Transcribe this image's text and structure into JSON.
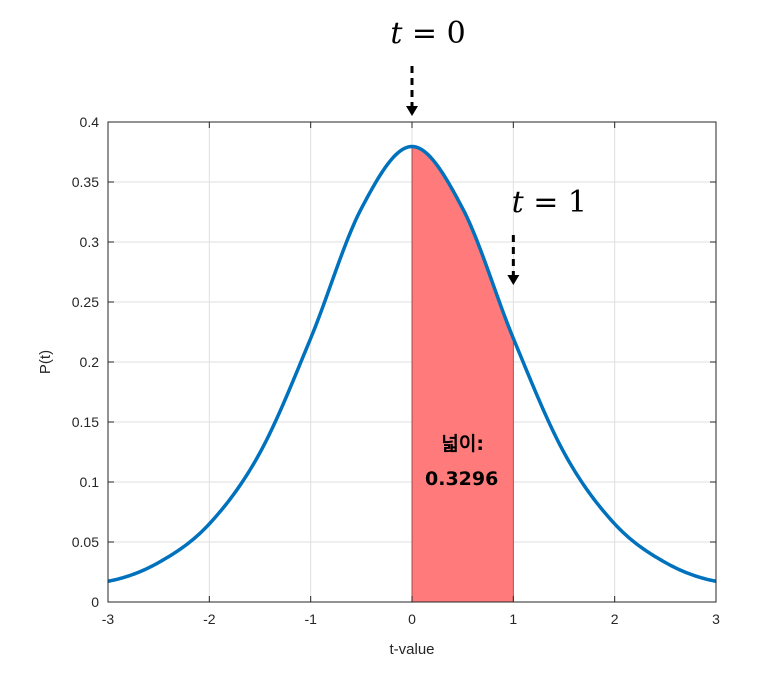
{
  "chart_data": {
    "type": "line",
    "title": "",
    "xlabel": "t-value",
    "ylabel": "P(t)",
    "xlim": [
      -3,
      3
    ],
    "ylim": [
      0,
      0.4
    ],
    "xticks": [
      -3,
      -2,
      -1,
      0,
      1,
      2,
      3
    ],
    "xtick_labels": [
      "-3",
      "-2",
      "-1",
      "0",
      "1",
      "2",
      "3"
    ],
    "yticks": [
      0,
      0.05,
      0.1,
      0.15,
      0.2,
      0.25,
      0.3,
      0.35,
      0.4
    ],
    "ytick_labels": [
      "0",
      "0.05",
      "0.1",
      "0.15",
      "0.2",
      "0.25",
      "0.3",
      "0.35",
      "0.4"
    ],
    "grid": true,
    "degrees_of_freedom_hint": 5,
    "series": [
      {
        "color": "#0072bd",
        "x": [
          -3,
          -2.5,
          -2,
          -1.5,
          -1,
          -0.5,
          0,
          0.5,
          1,
          1.5,
          2,
          2.5,
          3
        ],
        "y": [
          0.0173,
          0.0329,
          0.0651,
          0.1245,
          0.2197,
          0.3279,
          0.3796,
          0.3279,
          0.2197,
          0.1245,
          0.0651,
          0.0329,
          0.0173
        ]
      }
    ],
    "shaded_region": {
      "x_from": 0,
      "x_to": 1,
      "color": "#ff7a7a"
    },
    "annotations": [
      {
        "id": "t0",
        "math_var": "t",
        "math_rest": " = 0",
        "points_to_x": 0
      },
      {
        "id": "t1",
        "math_var": "t",
        "math_rest": " = 1",
        "points_to_x": 1
      }
    ],
    "area_label_line1": "넓이:",
    "area_label_line2": "0.3296"
  }
}
